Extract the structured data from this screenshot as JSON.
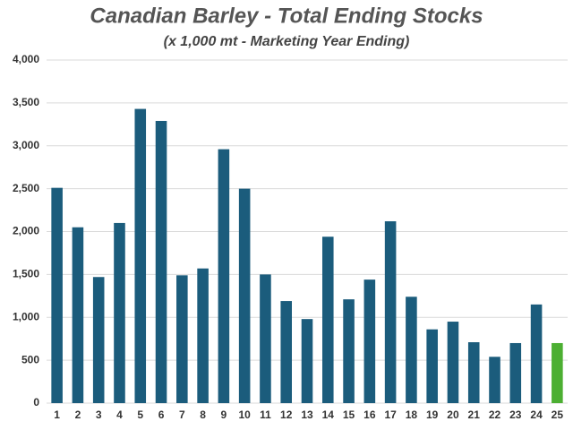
{
  "chart_data": {
    "type": "bar",
    "title": "Canadian Barley - Total Ending Stocks",
    "subtitle": "(x 1,000 mt - Marketing Year Ending)",
    "categories": [
      "1",
      "2",
      "3",
      "4",
      "5",
      "6",
      "7",
      "8",
      "9",
      "10",
      "11",
      "12",
      "13",
      "14",
      "15",
      "16",
      "17",
      "18",
      "19",
      "20",
      "21",
      "22",
      "23",
      "24",
      "25"
    ],
    "values": [
      2510,
      2050,
      1470,
      2100,
      3430,
      3290,
      1490,
      1570,
      2960,
      2500,
      1500,
      1190,
      980,
      1940,
      1210,
      1440,
      2120,
      1240,
      860,
      950,
      710,
      540,
      700,
      1150,
      700
    ],
    "colors": [
      "#1b5c7c",
      "#1b5c7c",
      "#1b5c7c",
      "#1b5c7c",
      "#1b5c7c",
      "#1b5c7c",
      "#1b5c7c",
      "#1b5c7c",
      "#1b5c7c",
      "#1b5c7c",
      "#1b5c7c",
      "#1b5c7c",
      "#1b5c7c",
      "#1b5c7c",
      "#1b5c7c",
      "#1b5c7c",
      "#1b5c7c",
      "#1b5c7c",
      "#1b5c7c",
      "#1b5c7c",
      "#1b5c7c",
      "#1b5c7c",
      "#1b5c7c",
      "#1b5c7c",
      "#4caf32"
    ],
    "ylim": [
      0,
      4000
    ],
    "yticks": [
      0,
      500,
      {
        "value": 1000,
        "label": "1,000"
      },
      {
        "value": 1500,
        "label": "1,500"
      },
      {
        "value": 2000,
        "label": "2,000"
      },
      {
        "value": 2500,
        "label": "2,500"
      },
      {
        "value": 3000,
        "label": "3,000"
      },
      {
        "value": 3500,
        "label": "3,500"
      },
      {
        "value": 4000,
        "label": "4,000"
      }
    ],
    "grid": true
  }
}
